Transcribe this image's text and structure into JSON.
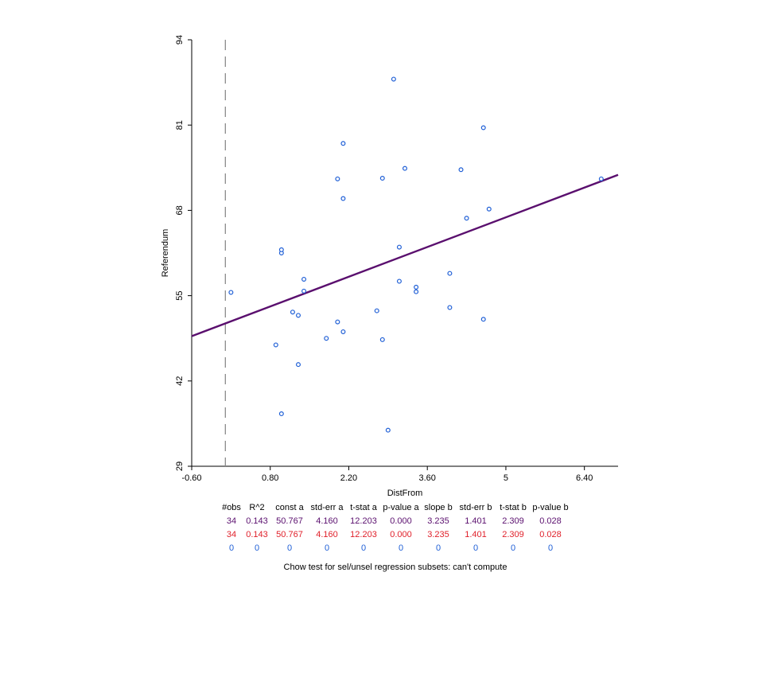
{
  "chart_data": {
    "type": "scatter",
    "xlabel": "DistFrom",
    "ylabel": "Referendum",
    "xlim": [
      -0.6,
      7.0
    ],
    "ylim": [
      29,
      94
    ],
    "x_ticks": [
      -0.6,
      0.8,
      2.2,
      3.6,
      5,
      6.4
    ],
    "x_tick_labels": [
      "-0.60",
      "0.80",
      "2.20",
      "3.60",
      "5",
      "6.40"
    ],
    "y_ticks": [
      29,
      42,
      55,
      68,
      81,
      94
    ],
    "y_tick_labels": [
      "29",
      "42",
      "55",
      "68",
      "81",
      "94"
    ],
    "grid": false,
    "vline_x": 0.0,
    "series": [
      {
        "type": "scatter",
        "color": "#1f5fd6",
        "points": [
          [
            0.1,
            55.5
          ],
          [
            0.9,
            47.5
          ],
          [
            1.0,
            37.0
          ],
          [
            1.0,
            61.5
          ],
          [
            1.0,
            62.0
          ],
          [
            1.2,
            52.5
          ],
          [
            1.3,
            44.5
          ],
          [
            1.3,
            52.0
          ],
          [
            1.4,
            55.7
          ],
          [
            1.4,
            57.5
          ],
          [
            1.8,
            48.5
          ],
          [
            2.0,
            51.0
          ],
          [
            2.0,
            72.8
          ],
          [
            2.1,
            49.5
          ],
          [
            2.1,
            69.8
          ],
          [
            2.1,
            78.2
          ],
          [
            2.7,
            52.7
          ],
          [
            2.8,
            48.3
          ],
          [
            2.8,
            72.9
          ],
          [
            2.9,
            34.5
          ],
          [
            3.0,
            88.0
          ],
          [
            3.1,
            57.2
          ],
          [
            3.1,
            62.4
          ],
          [
            3.2,
            74.4
          ],
          [
            3.4,
            55.6
          ],
          [
            3.4,
            56.3
          ],
          [
            4.0,
            53.2
          ],
          [
            4.0,
            58.4
          ],
          [
            4.2,
            74.2
          ],
          [
            4.3,
            66.8
          ],
          [
            4.6,
            51.4
          ],
          [
            4.6,
            80.6
          ],
          [
            4.7,
            68.2
          ],
          [
            6.7,
            72.8
          ]
        ]
      },
      {
        "type": "line",
        "color": "#5a0f6e",
        "intercept": 50.767,
        "slope": 3.235
      }
    ]
  },
  "stats": {
    "headers": [
      "#obs",
      "R^2",
      "const a",
      "std-err a",
      "t-stat a",
      "p-value a",
      "slope b",
      "std-err b",
      "t-stat b",
      "p-value b"
    ],
    "rows": [
      [
        "34",
        "0.143",
        "50.767",
        "4.160",
        "12.203",
        "0.000",
        "3.235",
        "1.401",
        "2.309",
        "0.028"
      ],
      [
        "34",
        "0.143",
        "50.767",
        "4.160",
        "12.203",
        "0.000",
        "3.235",
        "1.401",
        "2.309",
        "0.028"
      ],
      [
        "0",
        "0",
        "0",
        "0",
        "0",
        "0",
        "0",
        "0",
        "0",
        "0"
      ]
    ],
    "row_colors": [
      "#5a0f6e",
      "#e0202a",
      "#1f5fd6"
    ]
  },
  "chow_test": "Chow test for sel/unsel regression subsets: can't compute"
}
